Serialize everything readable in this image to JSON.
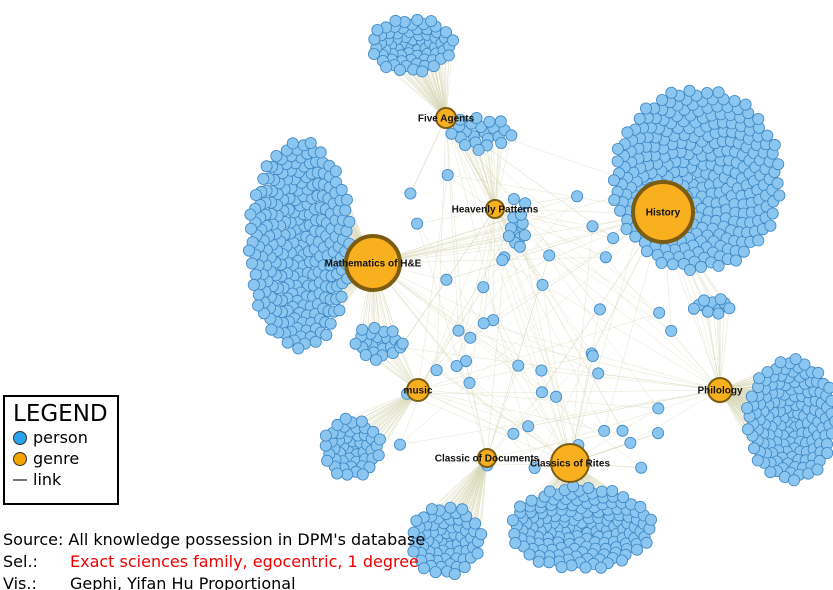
{
  "legend": {
    "title": "LEGEND",
    "items": [
      "person",
      "genre",
      "link"
    ]
  },
  "nodes": [
    {
      "label": "Five Agents"
    },
    {
      "label": "Heavenly Patterns"
    },
    {
      "label": "History"
    },
    {
      "label": "Mathematics of H&E"
    },
    {
      "label": "music"
    },
    {
      "label": "Philology"
    },
    {
      "label": "Classic of Documents"
    },
    {
      "label": "Classics of Rites"
    }
  ],
  "caption": {
    "source": "Source: All knowledge possession in DPM's database",
    "sel_label": "Sel.:",
    "sel_text": "Exact sciences family, egocentric, 1 degree",
    "vis_label": "Vis.:",
    "vis_text": "Gephi, Yifan Hu Proportional"
  }
}
